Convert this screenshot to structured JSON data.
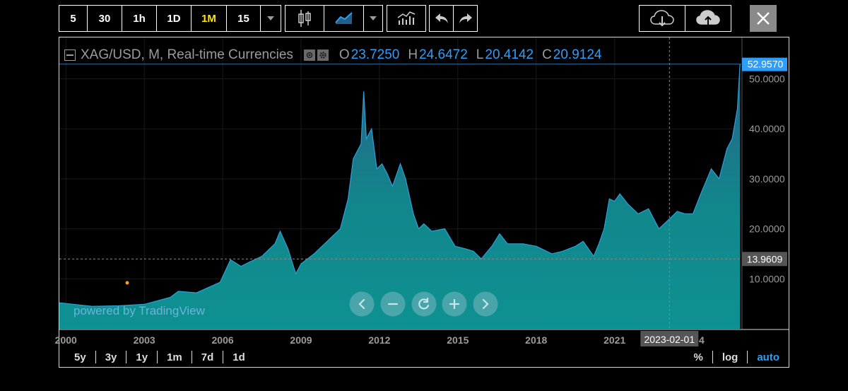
{
  "toolbar": {
    "intervals": [
      {
        "label": "5",
        "active": false
      },
      {
        "label": "30",
        "active": false
      },
      {
        "label": "1h",
        "active": false
      },
      {
        "label": "1D",
        "active": false
      },
      {
        "label": "1M",
        "active": true
      },
      {
        "label": "15",
        "active": false
      }
    ],
    "dropdown_icon": "chevron-down-icon",
    "chart_type_icons": [
      "candlestick-icon",
      "area-chart-icon",
      "chevron-down-icon"
    ],
    "indicators_icon": "indicators-icon",
    "undo_icon": "undo-icon",
    "redo_icon": "redo-icon",
    "save_icon": "cloud-download-icon",
    "load_icon": "cloud-upload-icon",
    "close_icon": "close-icon"
  },
  "legend": {
    "symbol": "XAG/USD, M, Real-time Currencies",
    "o_label": "O",
    "o_value": "23.7250",
    "h_label": "H",
    "h_value": "24.6472",
    "l_label": "L",
    "l_value": "20.4142",
    "c_label": "C",
    "c_value": "20.9124"
  },
  "watermark": "powered by TradingView",
  "crosshair": {
    "date_label": "2023-02-01",
    "price_label": "13.9609",
    "price": 13.9609
  },
  "last_price_label": "52.9570",
  "y_ticks": [
    "10.0000",
    "20.0000",
    "30.0000",
    "40.0000",
    "50.0000"
  ],
  "x_ticks": [
    "2000",
    "2003",
    "2006",
    "2009",
    "2012",
    "2015",
    "2018",
    "2021"
  ],
  "x_tick_hidden_suffix": "4",
  "range_tabs": [
    "5y",
    "3y",
    "1y",
    "1m",
    "7d",
    "1d"
  ],
  "scale_tabs": {
    "percent": "%",
    "log": "log",
    "auto": "auto"
  },
  "colors": {
    "area_fill": "#0e8f92",
    "area_line": "#2d9ed8",
    "accent_blue": "#2f9ef8",
    "active_interval": "#ffe600"
  },
  "chart_data": {
    "type": "area",
    "title": "XAG/USD, M, Real-time Currencies",
    "xlabel": "",
    "ylabel": "",
    "ylim": [
      0,
      52.957
    ],
    "x": [
      1999.75,
      2001,
      2002,
      2003,
      2004,
      2004.3,
      2005,
      2005.9,
      2006.3,
      2006.7,
      2007,
      2007.5,
      2008,
      2008.2,
      2008.5,
      2008.8,
      2009,
      2009.5,
      2010,
      2010.5,
      2010.8,
      2011,
      2011.3,
      2011.4,
      2011.5,
      2011.7,
      2011.9,
      2012.1,
      2012.3,
      2012.5,
      2012.8,
      2013,
      2013.3,
      2013.5,
      2013.7,
      2014,
      2014.5,
      2014.9,
      2015.3,
      2015.6,
      2015.9,
      2016.3,
      2016.6,
      2016.9,
      2017.5,
      2018,
      2018.6,
      2019,
      2019.5,
      2019.8,
      2020.2,
      2020.4,
      2020.6,
      2020.8,
      2021,
      2021.2,
      2021.5,
      2021.9,
      2022.3,
      2022.7,
      2023.1,
      2023.4,
      2023.7,
      2024,
      2024.3,
      2024.7,
      2025,
      2025.3,
      2025.5,
      2025.7,
      2025.8
    ],
    "y": [
      5.2,
      4.5,
      4.6,
      4.9,
      6.3,
      7.5,
      7.2,
      9.3,
      13.8,
      12.5,
      13.3,
      14.5,
      17,
      19.5,
      16,
      11,
      13,
      15,
      17.5,
      20,
      26,
      34,
      37,
      47.5,
      38,
      40,
      32,
      33,
      31,
      28.5,
      33,
      30,
      23,
      20,
      21,
      19.5,
      20,
      16.5,
      16,
      15.5,
      14,
      16.5,
      19,
      17,
      17,
      16.5,
      15,
      15.5,
      16.5,
      17.5,
      14.5,
      17,
      20,
      26,
      25.5,
      27,
      25,
      23,
      24,
      20,
      22,
      23.5,
      23,
      23,
      27,
      32,
      30,
      36,
      38,
      44,
      52.957
    ]
  }
}
